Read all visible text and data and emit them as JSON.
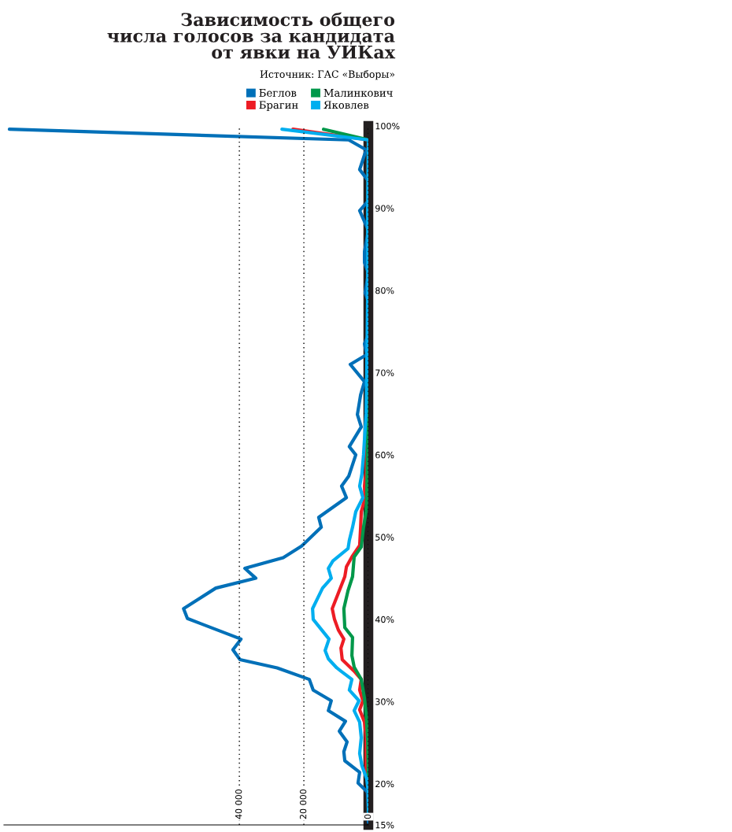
{
  "chart_data": {
    "type": "line",
    "orientation": "horizontal",
    "title": "Зависимость общего\nчисла голосов за кандидата\nот явки на УИКах",
    "annotations": [
      "Источник: ГАС «Выборы»"
    ],
    "xlim": [
      113000,
      0
    ],
    "xticks": [
      {
        "value": 40000,
        "label": "40 000"
      },
      {
        "value": 20000,
        "label": "20 000"
      },
      0
    ],
    "ylim": [
      15,
      100
    ],
    "yticks": [
      {
        "value": 15,
        "label": "15%"
      },
      {
        "value": 20,
        "label": "20%"
      },
      {
        "value": 30,
        "label": "30%"
      },
      {
        "value": 40,
        "label": "40%"
      },
      {
        "value": 50,
        "label": "50%"
      },
      {
        "value": 60,
        "label": "60%"
      },
      {
        "value": 70,
        "label": "70%"
      },
      {
        "value": 80,
        "label": "80%"
      },
      {
        "value": 90,
        "label": "90%"
      },
      {
        "value": 100,
        "label": "100%"
      }
    ],
    "grid": "x",
    "legend": "top right",
    "series": [
      {
        "name": "Беглов",
        "color": "#0070b8",
        "x": [
          15.3,
          17,
          19,
          20.1,
          21.4,
          22.8,
          23.9,
          25.1,
          26.4,
          27.6,
          28.9,
          30.1,
          31.4,
          32.7,
          34.1,
          35.1,
          36.3,
          37.6,
          40.1,
          41.3,
          43.8,
          45.0,
          46.2,
          47.5,
          48.9,
          51.2,
          52.4,
          54.8,
          56.2,
          57.4,
          60.0,
          61.0,
          63.4,
          64.9,
          67.3,
          68.9,
          71.0,
          72.2,
          73.5,
          74.6,
          78.9,
          79.7,
          82.1,
          83.4,
          84.7,
          87.3,
          89.7,
          90.9,
          93.3,
          94.7,
          97.1,
          98.3,
          99.6
        ],
        "values": [
          0,
          0,
          300,
          3200,
          2700,
          7300,
          7600,
          6600,
          9000,
          7100,
          12400,
          11500,
          17100,
          18300,
          28300,
          39800,
          42000,
          39500,
          56100,
          57300,
          47300,
          34900,
          38300,
          26400,
          20700,
          14600,
          15400,
          6800,
          8300,
          6100,
          3900,
          5900,
          2200,
          3400,
          2400,
          1200,
          5600,
          500,
          1200,
          0,
          200,
          1000,
          0,
          1200,
          1200,
          0,
          2700,
          0,
          0,
          2700,
          700,
          6100,
          111300
        ]
      },
      {
        "name": "Брагин",
        "color": "#ed1c24",
        "x": [
          16,
          19.9,
          22.2,
          25.6,
          27.5,
          29.0,
          30.1,
          31.4,
          32.7,
          33.7,
          35.1,
          36.5,
          37.6,
          38.7,
          40.0,
          41.3,
          45.2,
          46.4,
          47.6,
          49.0,
          51.2,
          53.1,
          54.8,
          56.2,
          57.9,
          60,
          70,
          80,
          90,
          98.3,
          99.6
        ],
        "values": [
          0,
          0,
          700,
          700,
          1200,
          2700,
          1700,
          2700,
          2200,
          4400,
          8100,
          8500,
          7600,
          9300,
          10500,
          11200,
          7300,
          6800,
          5100,
          2700,
          2400,
          2200,
          1000,
          1200,
          700,
          600,
          300,
          200,
          100,
          0,
          23400
        ]
      },
      {
        "name": "Малинкович",
        "color": "#00984a",
        "x": [
          16,
          20.6,
          25.3,
          28.5,
          30.4,
          32.7,
          34.2,
          35.6,
          37.8,
          39.0,
          41.3,
          43.5,
          45.2,
          47.6,
          48.8,
          51.2,
          53.1,
          54.8,
          60,
          70,
          80,
          90,
          98.3,
          99.6
        ],
        "values": [
          0,
          0,
          200,
          700,
          1200,
          2200,
          4400,
          5100,
          4900,
          7300,
          7600,
          6300,
          4900,
          4400,
          2200,
          1500,
          700,
          500,
          300,
          200,
          100,
          100,
          0,
          13900
        ]
      },
      {
        "name": "Яковлев",
        "color": "#00aeef",
        "x": [
          16,
          18.9,
          20.6,
          22.2,
          23.7,
          25.6,
          27.5,
          28.9,
          30.1,
          31.4,
          32.7,
          33.7,
          34.1,
          35.2,
          36.2,
          37.6,
          40.0,
          41.3,
          43.8,
          45.0,
          46.2,
          47.1,
          48.6,
          49.6,
          51.2,
          53.1,
          54.8,
          56.2,
          57.7,
          60,
          65,
          70,
          80,
          90,
          98.3,
          99.6
        ],
        "values": [
          0,
          0,
          500,
          2000,
          2700,
          2200,
          2700,
          4400,
          2900,
          5900,
          5100,
          8500,
          9800,
          12400,
          13400,
          12200,
          17100,
          17300,
          14200,
          11500,
          12400,
          11000,
          6300,
          5900,
          4900,
          3900,
          1700,
          2700,
          2000,
          1500,
          700,
          500,
          200,
          200,
          0,
          26800
        ]
      }
    ]
  }
}
